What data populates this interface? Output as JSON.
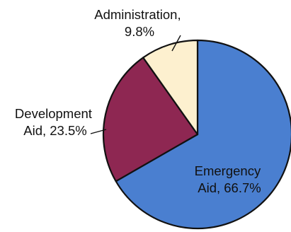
{
  "chart_data": {
    "type": "pie",
    "title": "",
    "legend": "none",
    "slices": [
      {
        "name": "Emergency Aid",
        "value": 66.7,
        "color": "#4a7fd0",
        "label_lines": [
          "Emergency",
          "Aid, 66.7%"
        ]
      },
      {
        "name": "Development Aid",
        "value": 23.5,
        "color": "#8e2752",
        "label_lines": [
          "Development",
          "Aid, 23.5%"
        ]
      },
      {
        "name": "Administration",
        "value": 9.8,
        "color": "#fdf0cf",
        "label_lines": [
          "Administration,",
          "9.8%"
        ]
      }
    ]
  }
}
